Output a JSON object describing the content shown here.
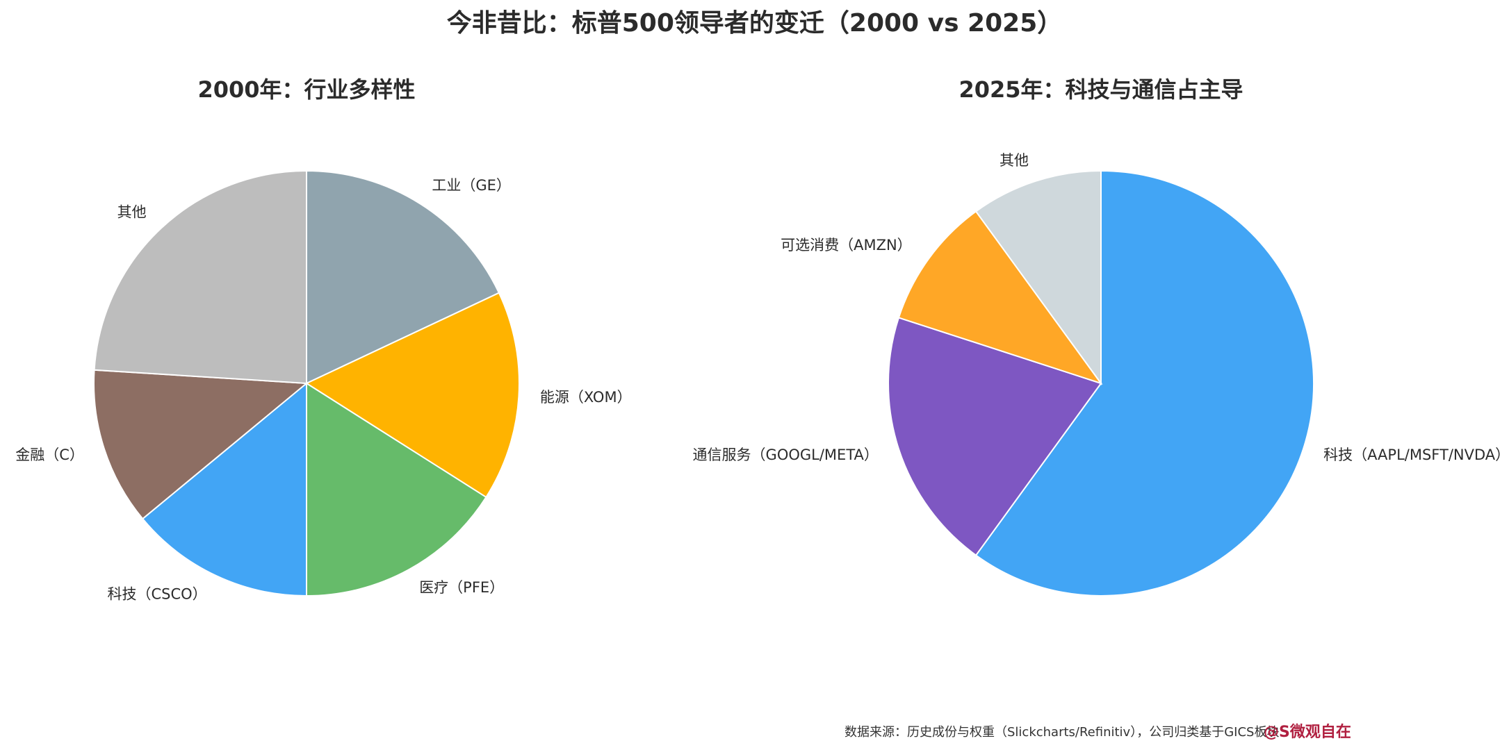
{
  "title": "今非昔比：标普500领导者的变迁（2000 vs 2025）",
  "footnote": "数据来源：历史成份与权重（Slickcharts/Refinitiv），公司归类基于GICS板块",
  "watermark": "@S微观自在",
  "chart_data": [
    {
      "type": "pie",
      "title": "2000年：行业多样性",
      "start_angle_deg": 90,
      "direction": "clockwise",
      "slices": [
        {
          "label": "工业（GE）",
          "value": 18,
          "color": "#90a4ae"
        },
        {
          "label": "能源（XOM）",
          "value": 16,
          "color": "#ffb300"
        },
        {
          "label": "医疗（PFE）",
          "value": 16,
          "color": "#66bb6a"
        },
        {
          "label": "科技（CSCO）",
          "value": 14,
          "color": "#42a5f5"
        },
        {
          "label": "金融（C）",
          "value": 12,
          "color": "#8d6e63"
        },
        {
          "label": "其他",
          "value": 24,
          "color": "#bdbdbd"
        }
      ]
    },
    {
      "type": "pie",
      "title": "2025年：科技与通信占主导",
      "start_angle_deg": 90,
      "direction": "clockwise",
      "slices": [
        {
          "label": "科技（AAPL/MSFT/NVDA）",
          "value": 60,
          "color": "#42a5f5"
        },
        {
          "label": "通信服务（GOOGL/META）",
          "value": 20,
          "color": "#7e57c2"
        },
        {
          "label": "可选消费（AMZN）",
          "value": 10,
          "color": "#ffa726"
        },
        {
          "label": "其他",
          "value": 10,
          "color": "#cfd8dc"
        }
      ]
    }
  ]
}
